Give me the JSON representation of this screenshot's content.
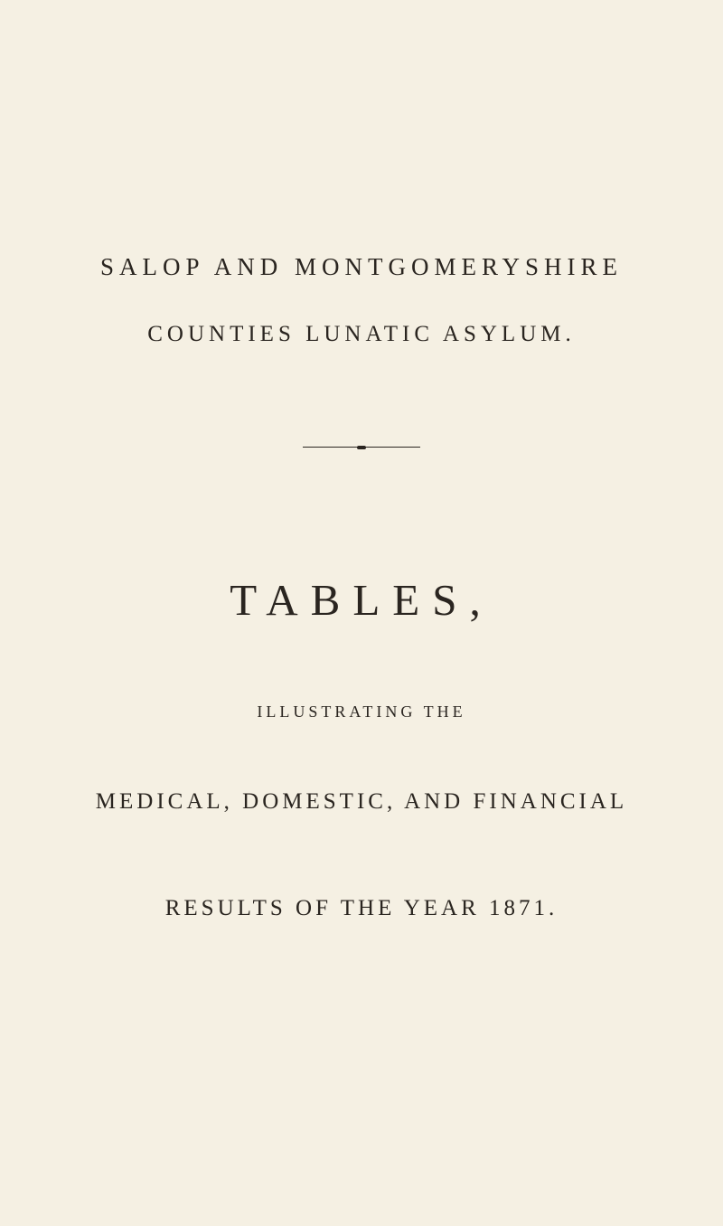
{
  "document": {
    "background_color": "#f5f0e3",
    "text_color": "#2a2520",
    "header": {
      "line1": "SALOP AND MONTGOMERYSHIRE",
      "line2": "COUNTIES LUNATIC ASYLUM."
    },
    "title": "TABLES,",
    "subtitle": "ILLUSTRATING THE",
    "body_line1": "MEDICAL, DOMESTIC, AND FINANCIAL",
    "body_line2": "RESULTS OF THE YEAR 1871.",
    "typography": {
      "header_fontsize": 27,
      "subheader_fontsize": 25,
      "title_fontsize": 49,
      "subtitle_fontsize": 18,
      "body_fontsize": 25,
      "font_family": "Georgia, Times New Roman, serif"
    },
    "divider": {
      "width": 130,
      "color": "#2a2520"
    }
  }
}
